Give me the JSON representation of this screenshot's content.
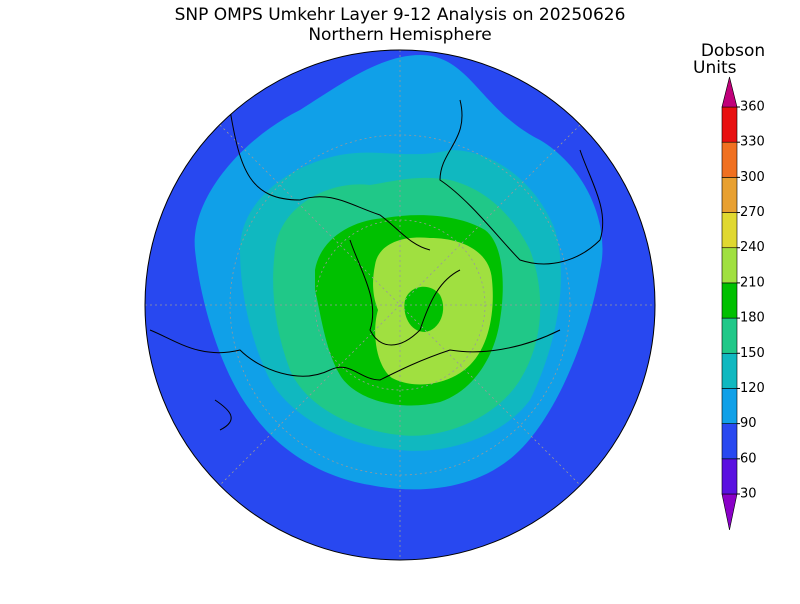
{
  "title": "SNP OMPS Umkehr Layer 9-12 Analysis on 20250626",
  "subtitle": "Northern Hemisphere",
  "legend": {
    "title_lines": [
      "Dobson",
      "Units"
    ],
    "ticks": [
      30,
      60,
      90,
      120,
      150,
      180,
      210,
      240,
      270,
      300,
      330,
      360
    ],
    "colors": [
      "#8a00c8",
      "#5a10e0",
      "#2848f0",
      "#10a0e8",
      "#10b8c0",
      "#20c888",
      "#00c000",
      "#a0e040",
      "#e0d830",
      "#e8a030",
      "#f07020",
      "#e81010",
      "#c0007a"
    ]
  }
}
